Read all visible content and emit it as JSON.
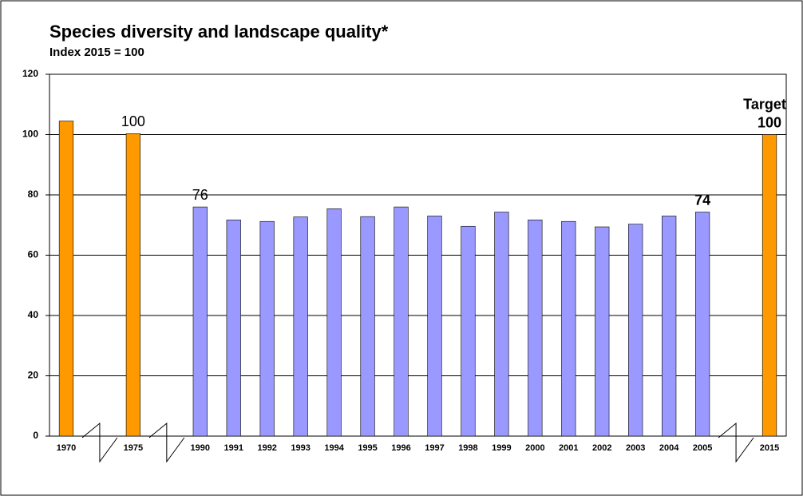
{
  "chart_data": {
    "type": "bar",
    "title": "Species diversity and landscape quality*",
    "subtitle": "Index 2015 = 100",
    "categories": [
      "1970",
      null,
      "1975",
      null,
      "1990",
      "1991",
      "1992",
      "1993",
      "1994",
      "1995",
      "1996",
      "1997",
      "1998",
      "1999",
      "2000",
      "2001",
      "2002",
      "2003",
      "2004",
      "2005",
      null,
      "2015"
    ],
    "values": [
      104.5,
      null,
      100.3,
      null,
      76,
      71.7,
      71.2,
      72.7,
      75.4,
      72.8,
      76,
      73,
      69.6,
      74.3,
      71.7,
      71.2,
      69.4,
      70.3,
      73,
      74.3,
      null,
      100
    ],
    "value_labels": [
      null,
      null,
      "100",
      null,
      "76",
      null,
      null,
      null,
      null,
      null,
      null,
      null,
      null,
      null,
      null,
      null,
      null,
      null,
      null,
      "74",
      null,
      "100"
    ],
    "value_label_bold": [
      false,
      false,
      false,
      false,
      false,
      false,
      false,
      false,
      false,
      false,
      false,
      false,
      false,
      false,
      false,
      false,
      false,
      false,
      false,
      true,
      false,
      true
    ],
    "colors": [
      "#ff9900",
      null,
      "#ff9900",
      null,
      "#9999ff",
      "#9999ff",
      "#9999ff",
      "#9999ff",
      "#9999ff",
      "#9999ff",
      "#9999ff",
      "#9999ff",
      "#9999ff",
      "#9999ff",
      "#9999ff",
      "#9999ff",
      "#9999ff",
      "#9999ff",
      "#9999ff",
      "#9999ff",
      null,
      "#ff9900"
    ],
    "annotations": [
      {
        "text": "Target",
        "index": 21
      }
    ],
    "ylim": [
      0,
      120
    ],
    "yticks": [
      0,
      20,
      40,
      60,
      80,
      100,
      120
    ],
    "grid": true
  }
}
